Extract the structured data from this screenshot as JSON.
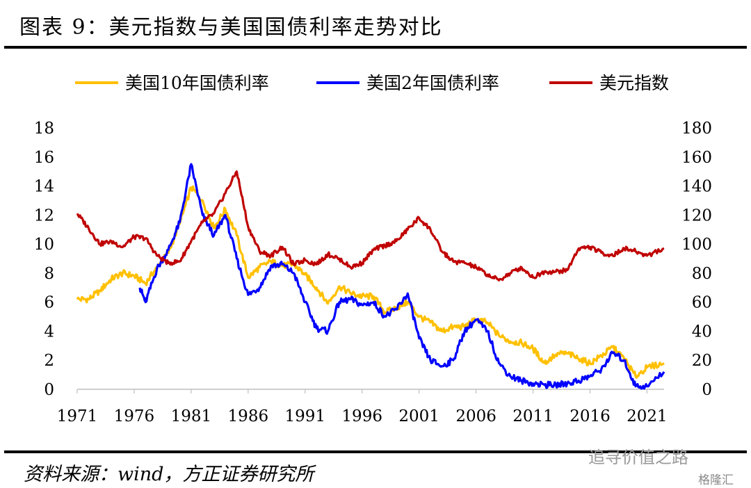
{
  "header": {
    "title": "图表 9：美元指数与美国国债利率走势对比"
  },
  "footer": {
    "source": "资料来源：wind，方正证券研究所",
    "watermark": "追寻价值之路",
    "watermark2": "格隆汇"
  },
  "chart_data": {
    "type": "line",
    "title": "图表 9：美元指数与美国国债利率走势对比",
    "xlabel": "",
    "ylabel": "",
    "x_ticks": [
      "1971",
      "1976",
      "1981",
      "1986",
      "1991",
      "1996",
      "2001",
      "2006",
      "2011",
      "2016",
      "2021"
    ],
    "xlim": [
      1971,
      2022.5
    ],
    "ylim_left": [
      0,
      18
    ],
    "y_ticks_left": [
      "0",
      "2",
      "4",
      "6",
      "8",
      "10",
      "12",
      "14",
      "16",
      "18"
    ],
    "ylim_right": [
      0,
      180
    ],
    "y_ticks_right": [
      "0",
      "20",
      "40",
      "60",
      "80",
      "100",
      "120",
      "140",
      "160",
      "180"
    ],
    "grid": false,
    "legend_position": "top",
    "series": [
      {
        "name": "美国10年国债利率",
        "axis": "left",
        "color": "#FFC000",
        "x": [
          1971,
          1972,
          1973,
          1974,
          1975,
          1976,
          1977,
          1978,
          1979,
          1980,
          1981,
          1982,
          1983,
          1984,
          1985,
          1986,
          1987,
          1988,
          1989,
          1990,
          1991,
          1992,
          1993,
          1994,
          1995,
          1996,
          1997,
          1998,
          1999,
          2000,
          2001,
          2002,
          2003,
          2004,
          2005,
          2006,
          2007,
          2008,
          2009,
          2010,
          2011,
          2012,
          2013,
          2014,
          2015,
          2016,
          2017,
          2018,
          2019,
          2020,
          2021,
          2022.5
        ],
        "values": [
          6.2,
          6.2,
          6.8,
          7.6,
          8.0,
          7.8,
          7.3,
          8.4,
          9.4,
          11.4,
          13.9,
          13.0,
          11.1,
          12.4,
          10.6,
          7.7,
          8.4,
          8.8,
          8.5,
          8.6,
          7.9,
          7.0,
          5.9,
          7.1,
          6.6,
          6.4,
          6.4,
          5.3,
          5.6,
          6.0,
          5.0,
          4.6,
          4.0,
          4.3,
          4.3,
          4.8,
          4.6,
          3.7,
          3.3,
          3.2,
          2.8,
          1.8,
          2.4,
          2.5,
          2.1,
          1.8,
          2.3,
          2.9,
          2.1,
          0.9,
          1.5,
          1.8
        ]
      },
      {
        "name": "美国2年国债利率",
        "axis": "left",
        "color": "#0000FF",
        "x": [
          1976.5,
          1977,
          1978,
          1979,
          1980,
          1981,
          1982,
          1983,
          1984,
          1985,
          1986,
          1987,
          1988,
          1989,
          1990,
          1991,
          1992,
          1993,
          1994,
          1995,
          1996,
          1997,
          1998,
          1999,
          2000,
          2001,
          2002,
          2003,
          2004,
          2005,
          2006,
          2007,
          2008,
          2009,
          2010,
          2011,
          2012,
          2013,
          2014,
          2015,
          2016,
          2017,
          2018,
          2019,
          2020,
          2021,
          2022.5
        ],
        "values": [
          7.0,
          6.0,
          8.3,
          9.6,
          11.5,
          15.5,
          12.0,
          10.6,
          12.0,
          9.0,
          6.5,
          7.0,
          8.5,
          8.6,
          8.0,
          6.0,
          4.2,
          4.0,
          6.0,
          6.2,
          5.8,
          6.0,
          5.0,
          5.5,
          6.6,
          3.5,
          2.0,
          1.6,
          2.0,
          4.0,
          4.8,
          4.0,
          1.8,
          0.9,
          0.6,
          0.4,
          0.3,
          0.3,
          0.4,
          0.6,
          0.9,
          1.4,
          2.5,
          2.0,
          0.2,
          0.2,
          1.2
        ]
      },
      {
        "name": "美元指数",
        "axis": "right",
        "color": "#C00000",
        "x": [
          1971,
          1972,
          1973,
          1974,
          1975,
          1976,
          1977,
          1978,
          1979,
          1980,
          1981,
          1982,
          1983,
          1984,
          1985,
          1986,
          1987,
          1988,
          1989,
          1990,
          1991,
          1992,
          1993,
          1994,
          1995,
          1996,
          1997,
          1998,
          1999,
          2000,
          2001,
          2002,
          2003,
          2004,
          2005,
          2006,
          2007,
          2008,
          2009,
          2010,
          2011,
          2012,
          2013,
          2014,
          2015,
          2016,
          2017,
          2018,
          2019,
          2020,
          2021,
          2022.5
        ],
        "values": [
          121,
          111,
          100,
          102,
          98,
          105,
          104,
          92,
          87,
          88,
          102,
          115,
          121,
          135,
          150,
          112,
          95,
          92,
          98,
          86,
          89,
          86,
          93,
          90,
          84,
          87,
          96,
          99,
          102,
          110,
          118,
          110,
          95,
          88,
          87,
          84,
          79,
          75,
          80,
          84,
          77,
          81,
          81,
          82,
          97,
          98,
          94,
          92,
          97,
          95,
          92,
          97
        ]
      }
    ]
  }
}
